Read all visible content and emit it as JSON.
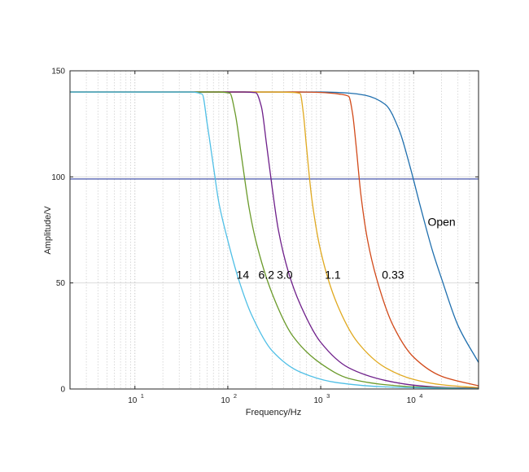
{
  "chart_data": {
    "type": "line",
    "title": "",
    "xlabel": "Frequency/Hz",
    "ylabel": "Amplitude/V",
    "xscale": "log",
    "xlim": [
      2,
      50000
    ],
    "ylim": [
      0,
      150
    ],
    "x_ticks": [
      {
        "value": 10,
        "base": "10",
        "exp": "1"
      },
      {
        "value": 100,
        "base": "10",
        "exp": "2"
      },
      {
        "value": 1000,
        "base": "10",
        "exp": "3"
      },
      {
        "value": 10000,
        "base": "10",
        "exp": "4"
      }
    ],
    "y_ticks": [
      {
        "value": 0,
        "label": "0"
      },
      {
        "value": 50,
        "label": "50"
      },
      {
        "value": 100,
        "label": "100"
      },
      {
        "value": 150,
        "label": "150"
      }
    ],
    "grid": true,
    "reference_line": {
      "y": 99,
      "color": "#3040a0"
    },
    "series": [
      {
        "name": "Open",
        "color": "#1f6fae",
        "label_at": {
          "x": 20000,
          "y": 77
        },
        "points": [
          [
            2,
            140
          ],
          [
            1000,
            140
          ],
          [
            2000,
            139.5
          ],
          [
            3000,
            138.5
          ],
          [
            5000,
            134
          ],
          [
            7000,
            122
          ],
          [
            9000,
            106
          ],
          [
            12000,
            85
          ],
          [
            16000,
            65
          ],
          [
            20000,
            52
          ],
          [
            30000,
            30
          ],
          [
            50000,
            12.5
          ]
        ]
      },
      {
        "name": "0.33",
        "color": "#d24a1a",
        "label_at": {
          "x": 6000,
          "y": 52
        },
        "points": [
          [
            2,
            140
          ],
          [
            600,
            140
          ],
          [
            1000,
            139.8
          ],
          [
            1600,
            139
          ],
          [
            2000,
            138
          ],
          [
            2200,
            130
          ],
          [
            2400,
            115
          ],
          [
            2700,
            92
          ],
          [
            3200,
            70
          ],
          [
            4000,
            52
          ],
          [
            6000,
            30
          ],
          [
            10000,
            15
          ],
          [
            20000,
            6
          ],
          [
            50000,
            1.5
          ]
        ]
      },
      {
        "name": "1.1",
        "color": "#e0a91f",
        "label_at": {
          "x": 1350,
          "y": 52
        },
        "points": [
          [
            2,
            140
          ],
          [
            300,
            140
          ],
          [
            500,
            139.8
          ],
          [
            600,
            139.3
          ],
          [
            650,
            130
          ],
          [
            700,
            115
          ],
          [
            800,
            90
          ],
          [
            1000,
            65
          ],
          [
            1500,
            40
          ],
          [
            2500,
            22
          ],
          [
            5000,
            10
          ],
          [
            10000,
            4.5
          ],
          [
            20000,
            2
          ],
          [
            50000,
            0.6
          ]
        ]
      },
      {
        "name": "3.0",
        "color": "#6e1f8a",
        "label_at": {
          "x": 410,
          "y": 52
        },
        "points": [
          [
            2,
            140
          ],
          [
            150,
            140
          ],
          [
            200,
            139.7
          ],
          [
            230,
            133
          ],
          [
            260,
            116
          ],
          [
            300,
            95
          ],
          [
            350,
            75
          ],
          [
            450,
            55
          ],
          [
            600,
            40
          ],
          [
            1000,
            22
          ],
          [
            2000,
            10
          ],
          [
            5000,
            4
          ],
          [
            10000,
            1.8
          ],
          [
            20000,
            0.8
          ],
          [
            50000,
            0.3
          ]
        ]
      },
      {
        "name": "6.2",
        "color": "#6a9a2a",
        "label_at": {
          "x": 260,
          "y": 52
        },
        "points": [
          [
            2,
            140
          ],
          [
            80,
            140
          ],
          [
            105,
            139.5
          ],
          [
            120,
            130
          ],
          [
            140,
            110
          ],
          [
            170,
            85
          ],
          [
            200,
            70
          ],
          [
            300,
            45
          ],
          [
            500,
            25
          ],
          [
            1000,
            12
          ],
          [
            2000,
            5
          ],
          [
            5000,
            2
          ],
          [
            10000,
            1
          ],
          [
            50000,
            0.2
          ]
        ]
      },
      {
        "name": "14",
        "color": "#4fbfe6",
        "label_at": {
          "x": 145,
          "y": 52
        },
        "points": [
          [
            2,
            140
          ],
          [
            40,
            140
          ],
          [
            53,
            139
          ],
          [
            60,
            125
          ],
          [
            70,
            105
          ],
          [
            80,
            88
          ],
          [
            100,
            70
          ],
          [
            130,
            52
          ],
          [
            180,
            35
          ],
          [
            300,
            18
          ],
          [
            600,
            8
          ],
          [
            1500,
            3
          ],
          [
            5000,
            1
          ],
          [
            50000,
            0.1
          ]
        ]
      }
    ]
  }
}
